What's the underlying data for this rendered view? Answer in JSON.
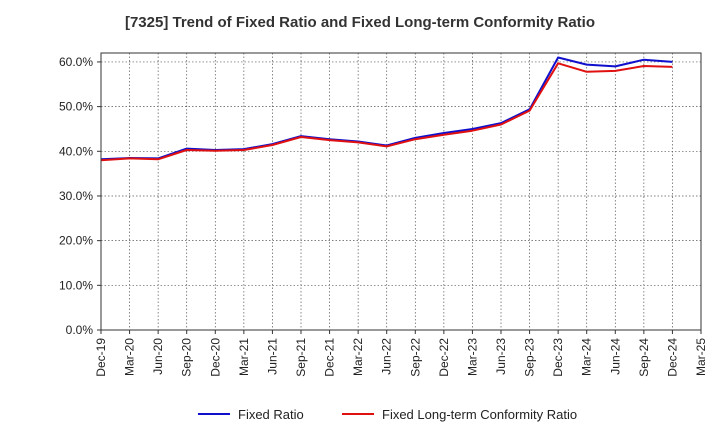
{
  "chart_data": {
    "type": "line",
    "title": "[7325]  Trend of Fixed Ratio and Fixed Long-term Conformity Ratio",
    "xlabel": "",
    "ylabel": "",
    "x": [
      "Dec-19",
      "Mar-20",
      "Jun-20",
      "Sep-20",
      "Dec-20",
      "Mar-21",
      "Jun-21",
      "Sep-21",
      "Dec-21",
      "Mar-22",
      "Jun-22",
      "Sep-22",
      "Dec-22",
      "Mar-23",
      "Jun-23",
      "Sep-23",
      "Dec-23",
      "Mar-24",
      "Jun-24",
      "Sep-24",
      "Dec-24",
      "Mar-25"
    ],
    "ylim": [
      0,
      62
    ],
    "yticks": [
      "0.0%",
      "10.0%",
      "20.0%",
      "30.0%",
      "40.0%",
      "50.0%",
      "60.0%"
    ],
    "ytick_values": [
      0,
      10,
      20,
      30,
      40,
      50,
      60
    ],
    "grid": true,
    "legend_position": "bottom",
    "series": [
      {
        "name": "Fixed Ratio",
        "color": "#1010cc",
        "values": [
          38.2,
          38.5,
          38.4,
          40.6,
          40.3,
          40.5,
          41.6,
          43.4,
          42.7,
          42.2,
          41.3,
          43.0,
          44.1,
          45.0,
          46.3,
          49.4,
          61.0,
          59.4,
          59.0,
          60.5,
          60.0,
          null
        ]
      },
      {
        "name": "Fixed Long-term Conformity Ratio",
        "color": "#e01010",
        "values": [
          38.0,
          38.4,
          38.2,
          40.3,
          40.1,
          40.3,
          41.4,
          43.2,
          42.5,
          42.0,
          41.1,
          42.7,
          43.7,
          44.6,
          46.0,
          49.1,
          59.7,
          57.8,
          58.0,
          59.1,
          58.9,
          null
        ]
      }
    ]
  }
}
